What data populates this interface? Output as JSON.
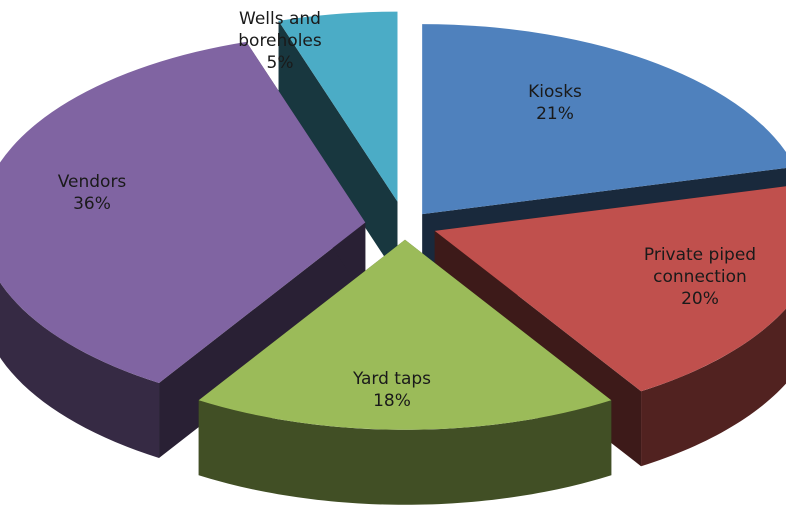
{
  "chart_data": {
    "type": "pie",
    "style": "3d-exploded",
    "title": "",
    "categories": [
      "Kiosks",
      "Private piped connection",
      "Yard taps",
      "Vendors",
      "Wells and boreholes"
    ],
    "values": [
      21,
      20,
      18,
      36,
      5
    ],
    "label_lines": [
      [
        "Kiosks",
        "21%"
      ],
      [
        "Private piped",
        "connection",
        "20%"
      ],
      [
        "Yard taps",
        "18%"
      ],
      [
        "Vendors",
        "36%"
      ],
      [
        "Wells and",
        "boreholes",
        "5%"
      ]
    ],
    "colors": [
      "#4f81bd",
      "#c0504d",
      "#9bbb59",
      "#8064a2",
      "#4bacc6"
    ],
    "legend": "none"
  }
}
